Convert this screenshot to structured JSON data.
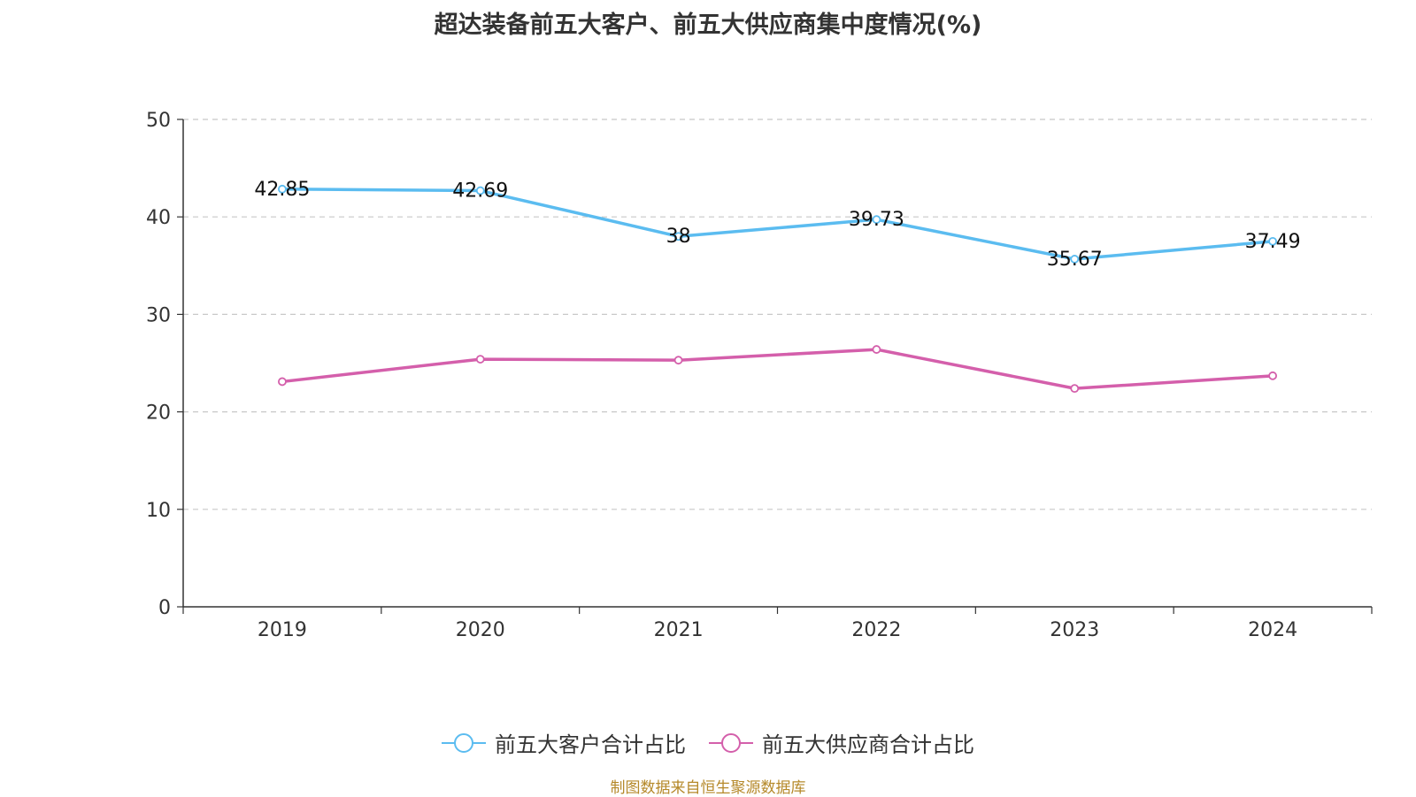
{
  "chart_data": {
    "type": "line",
    "title": "超达装备前五大客户、前五大供应商集中度情况(%)",
    "categories": [
      "2019",
      "2020",
      "2021",
      "2022",
      "2023",
      "2024"
    ],
    "ylim": [
      0,
      50
    ],
    "yticks": [
      0,
      10,
      20,
      30,
      40,
      50
    ],
    "grid": true,
    "legend_position": "bottom",
    "series": [
      {
        "name": "前五大客户合计占比",
        "values": [
          42.85,
          42.69,
          38,
          39.73,
          35.67,
          37.49
        ],
        "labels": [
          "42.85",
          "42.69",
          "38",
          "39.73",
          "35.67",
          "37.49"
        ],
        "color": "#5bbcf0"
      },
      {
        "name": "前五大供应商合计占比",
        "values": [
          23.1,
          25.4,
          25.3,
          26.4,
          22.4,
          23.7
        ],
        "color": "#d45fab"
      }
    ]
  },
  "source": "制图数据来自恒生聚源数据库"
}
